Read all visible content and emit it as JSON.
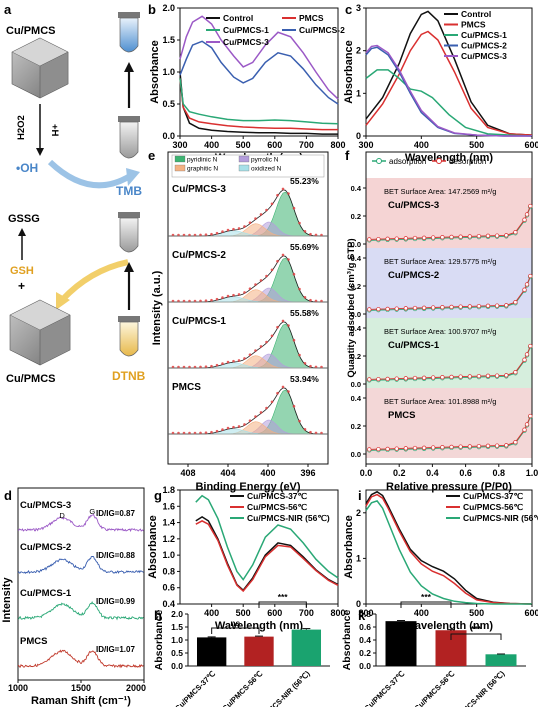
{
  "panel_a": {
    "letter": "a",
    "cu_top": "Cu/PMCS",
    "h2o2": "H2O2",
    "plus_h": "+H",
    "oh": "•OH",
    "tmb": "TMB",
    "gssg": "GSSG",
    "gsh": "GSH",
    "plus": "+",
    "cu_bottom": "Cu/PMCS",
    "dtnb": "DTNB"
  },
  "chart_data": [
    {
      "panel": "b",
      "type": "line",
      "xlabel": "Wavelength (nm)",
      "ylabel": "Absorbance",
      "xlim": [
        300,
        800
      ],
      "ylim": [
        0,
        2.0
      ],
      "xticks": [
        300,
        400,
        500,
        600,
        700,
        800
      ],
      "yticks": [
        0.0,
        0.5,
        1.0,
        1.5,
        2.0
      ],
      "legend": "top-right",
      "series": [
        {
          "name": "Control",
          "color": "#111111",
          "x": [
            300,
            310,
            330,
            360,
            400,
            450,
            500,
            550,
            600,
            650,
            700,
            750,
            800
          ],
          "y": [
            1.0,
            0.45,
            0.2,
            0.12,
            0.09,
            0.07,
            0.06,
            0.05,
            0.05,
            0.04,
            0.04,
            0.03,
            0.03
          ]
        },
        {
          "name": "PMCS",
          "color": "#d93030",
          "x": [
            300,
            310,
            330,
            360,
            400,
            450,
            500,
            550,
            600,
            650,
            700,
            750,
            800
          ],
          "y": [
            0.9,
            0.45,
            0.28,
            0.22,
            0.19,
            0.16,
            0.14,
            0.13,
            0.12,
            0.12,
            0.11,
            0.1,
            0.1
          ]
        },
        {
          "name": "Cu/PMCS-1",
          "color": "#2aa876",
          "x": [
            300,
            310,
            330,
            360,
            400,
            450,
            500,
            550,
            600,
            650,
            700,
            750,
            800
          ],
          "y": [
            0.9,
            0.5,
            0.38,
            0.34,
            0.3,
            0.26,
            0.24,
            0.24,
            0.25,
            0.24,
            0.22,
            0.2,
            0.19
          ]
        },
        {
          "name": "Cu/PMCS-2",
          "color": "#3a5fb0",
          "x": [
            300,
            320,
            340,
            370,
            400,
            430,
            470,
            500,
            530,
            570,
            610,
            650,
            690,
            730,
            770,
            800
          ],
          "y": [
            0.95,
            1.2,
            1.42,
            1.48,
            1.38,
            1.15,
            0.92,
            0.83,
            0.9,
            1.15,
            1.3,
            1.25,
            1.05,
            0.8,
            0.6,
            0.5
          ]
        },
        {
          "name": "Cu/PMCS-3",
          "color": "#9b59c6",
          "x": [
            300,
            320,
            340,
            370,
            400,
            430,
            470,
            500,
            530,
            570,
            610,
            650,
            690,
            730,
            770,
            800
          ],
          "y": [
            1.2,
            1.55,
            1.78,
            1.87,
            1.75,
            1.5,
            1.25,
            1.08,
            1.15,
            1.42,
            1.62,
            1.55,
            1.3,
            1.0,
            0.72,
            0.58
          ]
        }
      ]
    },
    {
      "panel": "c",
      "type": "line",
      "xlabel": "Wavelength (nm)",
      "ylabel": "Absorbance",
      "xlim": [
        300,
        600
      ],
      "ylim": [
        0,
        3.0
      ],
      "xticks": [
        300,
        400,
        500,
        600
      ],
      "yticks": [
        0,
        1,
        2,
        3
      ],
      "legend": "top-right",
      "series": [
        {
          "name": "Control",
          "color": "#111111",
          "x": [
            300,
            330,
            360,
            380,
            400,
            412,
            430,
            460,
            490,
            520,
            560,
            600
          ],
          "y": [
            0.4,
            0.9,
            1.7,
            2.4,
            2.85,
            2.92,
            2.7,
            1.8,
            0.8,
            0.25,
            0.05,
            0.02
          ]
        },
        {
          "name": "PMCS",
          "color": "#d93030",
          "x": [
            300,
            330,
            360,
            380,
            400,
            412,
            430,
            460,
            490,
            520,
            560,
            600
          ],
          "y": [
            0.25,
            0.75,
            1.45,
            2.0,
            2.38,
            2.45,
            2.25,
            1.5,
            0.65,
            0.2,
            0.05,
            0.02
          ]
        },
        {
          "name": "Cu/PMCS-1",
          "color": "#2aa876",
          "x": [
            300,
            320,
            340,
            360,
            380,
            400,
            420,
            450,
            480,
            520,
            560,
            600
          ],
          "y": [
            1.35,
            1.55,
            1.55,
            1.35,
            1.1,
            1.05,
            0.9,
            0.5,
            0.2,
            0.05,
            0.02,
            0.0
          ]
        },
        {
          "name": "Cu/PMCS-2",
          "color": "#3a5fb0",
          "x": [
            300,
            310,
            320,
            340,
            360,
            380,
            400,
            430,
            460,
            500,
            550,
            600
          ],
          "y": [
            1.9,
            2.05,
            2.08,
            1.9,
            1.5,
            1.0,
            0.55,
            0.2,
            0.06,
            0.02,
            0.0,
            0.0
          ]
        },
        {
          "name": "Cu/PMCS-3",
          "color": "#9b59c6",
          "x": [
            300,
            310,
            320,
            340,
            360,
            380,
            400,
            430,
            460,
            500,
            550,
            600
          ],
          "y": [
            1.95,
            2.1,
            2.12,
            1.95,
            1.55,
            1.05,
            0.6,
            0.22,
            0.07,
            0.02,
            0.0,
            0.0
          ]
        }
      ]
    },
    {
      "panel": "e",
      "type": "line",
      "xlabel": "Binding Energy (eV)",
      "ylabel": "Intensity (a.u.)",
      "xlim": [
        410,
        394
      ],
      "xticks": [
        408,
        404,
        400,
        396
      ],
      "legend": "top",
      "legend_entries": [
        {
          "name": "pyridinic N",
          "color": "#3cb371"
        },
        {
          "name": "pyrrolic N",
          "color": "#b39ddb"
        },
        {
          "name": "graphitic N",
          "color": "#f4b183"
        },
        {
          "name": "oxidized N",
          "color": "#a7e0e8"
        }
      ],
      "samples": [
        {
          "name": "Cu/PMCS-3",
          "percent": "55.23%"
        },
        {
          "name": "Cu/PMCS-2",
          "percent": "55.69%"
        },
        {
          "name": "Cu/PMCS-1",
          "percent": "55.58%"
        },
        {
          "name": "PMCS",
          "percent": "53.94%"
        }
      ]
    },
    {
      "panel": "f",
      "type": "line",
      "xlabel": "Relative pressure (P/P0)",
      "ylabel": "Quantity adsorbed (cm³/g STP)",
      "xlim": [
        0,
        1.0
      ],
      "xticks": [
        0.0,
        0.2,
        0.4,
        0.6,
        0.8,
        1.0
      ],
      "yticks": [
        0.0,
        0.2,
        0.4
      ],
      "legend": "top",
      "legend_entries": [
        {
          "name": "adsorption",
          "color": "#2aa876"
        },
        {
          "name": "desorption",
          "color": "#d93030"
        }
      ],
      "samples": [
        {
          "name": "Cu/PMCS-3",
          "bet": "BET Surface Area: 147.2569 m²/g"
        },
        {
          "name": "Cu/PMCS-2",
          "bet": "BET Surface Area: 129.5775 m²/g"
        },
        {
          "name": "Cu/PMCS-1",
          "bet": "BET Surface Area: 100.9707 m²/g"
        },
        {
          "name": "PMCS",
          "bet": "BET Surface Area: 101.8988 m²/g"
        }
      ]
    },
    {
      "panel": "d",
      "type": "line",
      "xlabel": "Raman Shift (cm⁻¹)",
      "ylabel": "Intensity",
      "xlim": [
        1000,
        2000
      ],
      "xticks": [
        1000,
        1500,
        2000
      ],
      "band_labels": [
        "D",
        "G"
      ],
      "samples": [
        {
          "name": "Cu/PMCS-3",
          "ratio": "ID/IG=0.87",
          "color": "#9b59c6"
        },
        {
          "name": "Cu/PMCS-2",
          "ratio": "ID/IG=0.88",
          "color": "#3a5fb0"
        },
        {
          "name": "Cu/PMCS-1",
          "ratio": "ID/IG=0.99",
          "color": "#2aa876"
        },
        {
          "name": "PMCS",
          "ratio": "ID/IG=1.07",
          "color": "#c0392b"
        }
      ]
    },
    {
      "panel": "g",
      "type": "line",
      "xlabel": "Wavelength (nm)",
      "ylabel": "Absorbance",
      "xlim": [
        300,
        800
      ],
      "ylim": [
        0.4,
        1.8
      ],
      "xticks": [
        400,
        500,
        600,
        700,
        800
      ],
      "yticks": [
        0.4,
        0.6,
        0.8,
        1.0,
        1.2,
        1.4,
        1.6,
        1.8
      ],
      "legend": "top-right",
      "series": [
        {
          "name": "Cu/PMCS-37℃",
          "color": "#111111",
          "x": [
            350,
            370,
            390,
            420,
            450,
            480,
            500,
            530,
            570,
            610,
            650,
            690,
            730,
            770,
            800
          ],
          "y": [
            1.42,
            1.47,
            1.42,
            1.2,
            0.9,
            0.64,
            0.57,
            0.72,
            1.0,
            1.15,
            1.12,
            0.98,
            0.82,
            0.7,
            0.64
          ]
        },
        {
          "name": "Cu/PMCS-56℃",
          "color": "#d93030",
          "x": [
            350,
            370,
            390,
            420,
            450,
            480,
            500,
            530,
            570,
            610,
            650,
            690,
            730,
            770,
            800
          ],
          "y": [
            1.38,
            1.42,
            1.38,
            1.18,
            0.88,
            0.63,
            0.56,
            0.7,
            0.98,
            1.12,
            1.1,
            0.96,
            0.81,
            0.69,
            0.63
          ]
        },
        {
          "name": "Cu/PMCS-NIR (56℃)",
          "color": "#2aa876",
          "x": [
            350,
            370,
            390,
            420,
            450,
            480,
            500,
            530,
            570,
            610,
            650,
            690,
            730,
            770,
            800
          ],
          "y": [
            1.65,
            1.73,
            1.68,
            1.45,
            1.1,
            0.8,
            0.7,
            0.88,
            1.22,
            1.37,
            1.32,
            1.15,
            0.95,
            0.8,
            0.72
          ]
        }
      ]
    },
    {
      "panel": "i",
      "type": "line",
      "xlabel": "Wavelength (nm)",
      "ylabel": "Absorbance",
      "xlim": [
        300,
        600
      ],
      "ylim": [
        0,
        2.5
      ],
      "xticks": [
        300,
        400,
        500,
        600
      ],
      "yticks": [
        0,
        1,
        2
      ],
      "legend": "top-right",
      "series": [
        {
          "name": "Cu/PMCS-37℃",
          "color": "#111111",
          "x": [
            300,
            310,
            320,
            330,
            340,
            360,
            380,
            400,
            420,
            440,
            460,
            480,
            500,
            530,
            560,
            600
          ],
          "y": [
            2.2,
            2.4,
            2.46,
            2.38,
            2.15,
            1.65,
            1.2,
            0.95,
            0.82,
            0.72,
            0.55,
            0.3,
            0.12,
            0.04,
            0.01,
            0.0
          ]
        },
        {
          "name": "Cu/PMCS-56℃",
          "color": "#d93030",
          "x": [
            300,
            310,
            320,
            330,
            340,
            360,
            380,
            400,
            420,
            440,
            460,
            480,
            500,
            530,
            560,
            600
          ],
          "y": [
            2.15,
            2.35,
            2.4,
            2.32,
            2.1,
            1.6,
            1.15,
            0.88,
            0.72,
            0.62,
            0.45,
            0.24,
            0.09,
            0.03,
            0.01,
            0.0
          ]
        },
        {
          "name": "Cu/PMCS-NIR (56℃)",
          "color": "#2aa876",
          "x": [
            300,
            310,
            320,
            330,
            340,
            360,
            380,
            400,
            420,
            440,
            460,
            480,
            500,
            530,
            560,
            600
          ],
          "y": [
            2.05,
            2.22,
            2.26,
            2.1,
            1.8,
            1.2,
            0.7,
            0.4,
            0.22,
            0.12,
            0.06,
            0.03,
            0.01,
            0.0,
            0.0,
            0.0
          ]
        }
      ]
    },
    {
      "panel": "h",
      "type": "bar",
      "ylabel": "Absorbance",
      "ylim": [
        0,
        2.0
      ],
      "yticks": [
        0.0,
        0.5,
        1.0,
        1.5,
        2.0
      ],
      "categories": [
        "Cu/PMCS-37℃",
        "Cu/PMCS-56℃",
        "Cu/PMCS-NIR (56℃)"
      ],
      "values": [
        1.1,
        1.13,
        1.4
      ],
      "errors": [
        0.02,
        0.02,
        0.04
      ],
      "colors": [
        "#000000",
        "#b22222",
        "#1aa36f"
      ],
      "significance": [
        {
          "from": 0,
          "to": 1,
          "label": "ns"
        },
        {
          "from": 1,
          "to": 2,
          "label": "***"
        }
      ]
    },
    {
      "panel": "k",
      "type": "bar",
      "ylabel": "Absorbance",
      "ylim": [
        0,
        0.8
      ],
      "yticks": [
        0.0,
        0.2,
        0.4,
        0.6,
        0.8
      ],
      "categories": [
        "Cu/PMCS-37℃",
        "Cu/PMCS-56℃",
        "Cu/PMCS-NIR (56℃)"
      ],
      "values": [
        0.69,
        0.55,
        0.18
      ],
      "errors": [
        0.01,
        0.01,
        0.005
      ],
      "colors": [
        "#000000",
        "#b22222",
        "#1aa36f"
      ],
      "significance": [
        {
          "from": 0,
          "to": 1,
          "label": "***"
        },
        {
          "from": 1,
          "to": 2,
          "label": "***"
        }
      ]
    }
  ]
}
